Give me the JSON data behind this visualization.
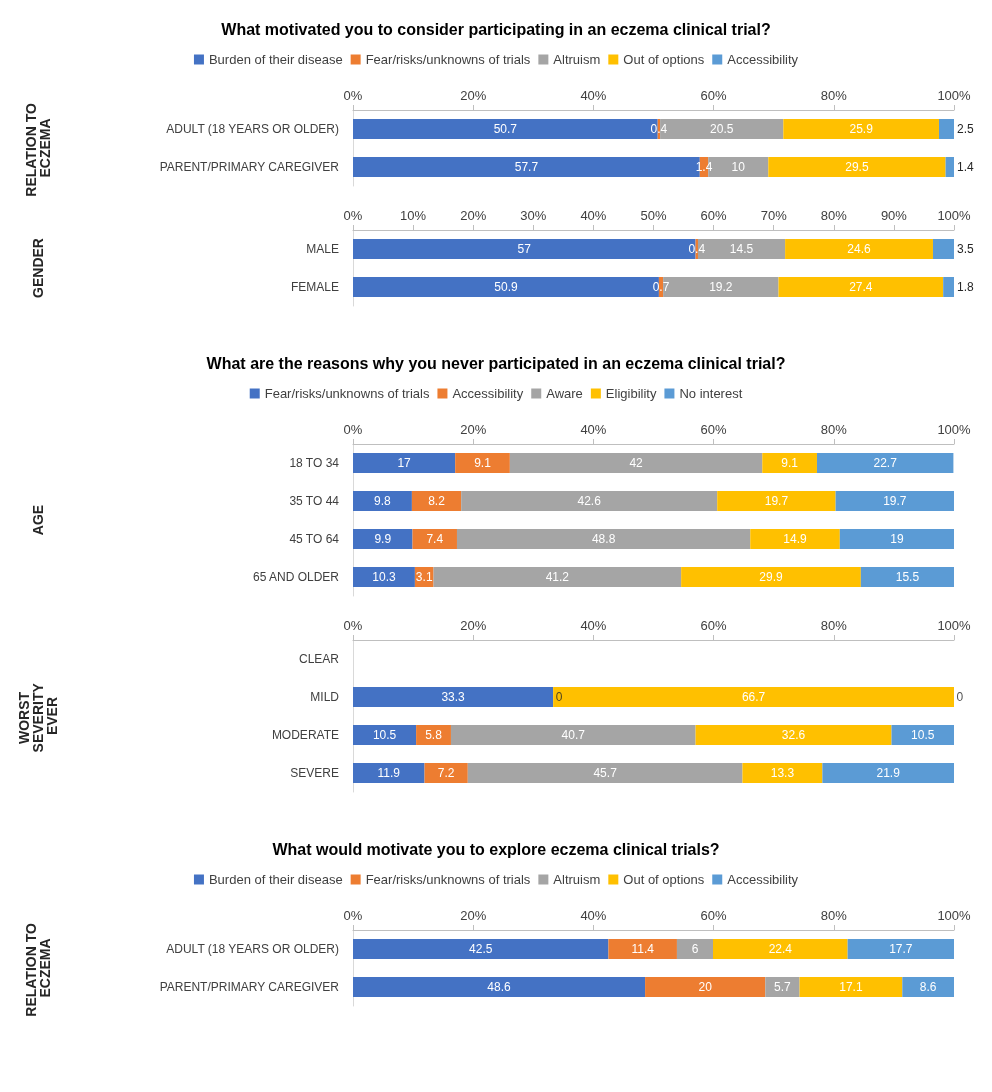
{
  "chart_data": [
    {
      "type": "bar",
      "orientation": "horizontal",
      "stacked": true,
      "data_labels": true,
      "legend": "top",
      "title": "What motivated you to consider participating in an eczema clinical trial?",
      "ylabel": "RELATION TO ECZEMA",
      "categories": [
        "ADULT (18 YEARS OR OLDER)",
        "PARENT/PRIMARY CAREGIVER"
      ],
      "xlim": [
        0,
        100
      ],
      "xticks": [
        {
          "value": 0,
          "label": "0%"
        },
        {
          "value": 20,
          "label": "20%"
        },
        {
          "value": 40,
          "label": "40%"
        },
        {
          "value": 60,
          "label": "60%"
        },
        {
          "value": 80,
          "label": "80%"
        },
        {
          "value": 100,
          "label": "100%"
        }
      ],
      "series": [
        {
          "name": "Burden of their disease",
          "color": "#4472c4",
          "values": [
            50.7,
            57.7
          ]
        },
        {
          "name": "Fear/risks/unknowns of trials",
          "color": "#ed7d31",
          "values": [
            0.4,
            1.4
          ]
        },
        {
          "name": "Altruism",
          "color": "#a5a5a5",
          "values": [
            20.5,
            10
          ]
        },
        {
          "name": "Out of options",
          "color": "#ffc000",
          "values": [
            25.9,
            29.5
          ]
        },
        {
          "name": "Accessibility",
          "color": "#5b9bd5",
          "values": [
            2.5,
            1.4
          ]
        }
      ]
    },
    {
      "type": "bar",
      "orientation": "horizontal",
      "stacked": true,
      "data_labels": true,
      "ylabel": "GENDER",
      "categories": [
        "MALE",
        "FEMALE"
      ],
      "xlim": [
        0,
        100
      ],
      "xticks": [
        {
          "value": 0,
          "label": "0%"
        },
        {
          "value": 10,
          "label": "10%"
        },
        {
          "value": 20,
          "label": "20%"
        },
        {
          "value": 30,
          "label": "30%"
        },
        {
          "value": 40,
          "label": "40%"
        },
        {
          "value": 50,
          "label": "50%"
        },
        {
          "value": 60,
          "label": "60%"
        },
        {
          "value": 70,
          "label": "70%"
        },
        {
          "value": 80,
          "label": "80%"
        },
        {
          "value": 90,
          "label": "90%"
        },
        {
          "value": 100,
          "label": "100%"
        }
      ],
      "series": [
        {
          "color": "#4472c4",
          "values": [
            57,
            50.9
          ]
        },
        {
          "color": "#ed7d31",
          "values": [
            0.4,
            0.7
          ]
        },
        {
          "color": "#a5a5a5",
          "values": [
            14.5,
            19.2
          ]
        },
        {
          "color": "#ffc000",
          "values": [
            24.6,
            27.4
          ]
        },
        {
          "color": "#5b9bd5",
          "values": [
            3.5,
            1.8
          ]
        }
      ]
    },
    {
      "type": "bar",
      "orientation": "horizontal",
      "stacked": true,
      "data_labels": true,
      "legend": "top",
      "title": "What are the reasons why you never participated in an eczema clinical trial?",
      "ylabel": "AGE",
      "categories": [
        "18 TO 34",
        "35 TO 44",
        "45 TO 64",
        "65 AND OLDER"
      ],
      "xlim": [
        0,
        100
      ],
      "xticks": [
        {
          "value": 0,
          "label": "0%"
        },
        {
          "value": 20,
          "label": "20%"
        },
        {
          "value": 40,
          "label": "40%"
        },
        {
          "value": 60,
          "label": "60%"
        },
        {
          "value": 80,
          "label": "80%"
        },
        {
          "value": 100,
          "label": "100%"
        }
      ],
      "series": [
        {
          "name": "Fear/risks/unknowns of trials",
          "color": "#4472c4",
          "values": [
            17,
            9.8,
            9.9,
            10.3
          ]
        },
        {
          "name": "Accessibility",
          "color": "#ed7d31",
          "values": [
            9.1,
            8.2,
            7.4,
            3.1
          ]
        },
        {
          "name": "Aware",
          "color": "#a5a5a5",
          "values": [
            42,
            42.6,
            48.8,
            41.2
          ]
        },
        {
          "name": "Eligibility",
          "color": "#ffc000",
          "values": [
            9.1,
            19.7,
            14.9,
            29.9
          ]
        },
        {
          "name": "No interest",
          "color": "#5b9bd5",
          "values": [
            22.7,
            19.7,
            19,
            15.5
          ]
        }
      ]
    },
    {
      "type": "bar",
      "orientation": "horizontal",
      "stacked": true,
      "data_labels": true,
      "ylabel": "WORST SEVERITY EVER",
      "annotations": [
        {
          "text": "0",
          "x": 33.3,
          "y": "MILD"
        },
        {
          "text": "0",
          "x": 100,
          "y": "MILD"
        }
      ],
      "categories": [
        "CLEAR",
        "MILD",
        "MODERATE",
        "SEVERE"
      ],
      "xlim": [
        0,
        100
      ],
      "xticks": [
        {
          "value": 0,
          "label": "0%"
        },
        {
          "value": 20,
          "label": "20%"
        },
        {
          "value": 40,
          "label": "40%"
        },
        {
          "value": 60,
          "label": "60%"
        },
        {
          "value": 80,
          "label": "80%"
        },
        {
          "value": 100,
          "label": "100%"
        }
      ],
      "series": [
        {
          "color": "#4472c4",
          "values": [
            null,
            33.3,
            10.5,
            11.9
          ]
        },
        {
          "color": "#ed7d31",
          "values": [
            null,
            null,
            5.8,
            7.2
          ]
        },
        {
          "color": "#a5a5a5",
          "values": [
            null,
            null,
            40.7,
            45.7
          ]
        },
        {
          "color": "#ffc000",
          "values": [
            null,
            66.7,
            32.6,
            13.3
          ]
        },
        {
          "color": "#5b9bd5",
          "values": [
            null,
            null,
            10.5,
            21.9
          ]
        }
      ]
    },
    {
      "type": "bar",
      "orientation": "horizontal",
      "stacked": true,
      "data_labels": true,
      "legend": "top",
      "title": "What would motivate you to explore eczema clinical trials?",
      "ylabel": "RELATION TO ECZEMA",
      "categories": [
        "ADULT (18 YEARS OR OLDER)",
        "PARENT/PRIMARY CAREGIVER"
      ],
      "xlim": [
        0,
        100
      ],
      "xticks": [
        {
          "value": 0,
          "label": "0%"
        },
        {
          "value": 20,
          "label": "20%"
        },
        {
          "value": 40,
          "label": "40%"
        },
        {
          "value": 60,
          "label": "60%"
        },
        {
          "value": 80,
          "label": "80%"
        },
        {
          "value": 100,
          "label": "100%"
        }
      ],
      "series": [
        {
          "name": "Burden of their disease",
          "color": "#4472c4",
          "values": [
            42.5,
            48.6
          ]
        },
        {
          "name": "Fear/risks/unknowns of trials",
          "color": "#ed7d31",
          "values": [
            11.4,
            20
          ]
        },
        {
          "name": "Altruism",
          "color": "#a5a5a5",
          "values": [
            6,
            5.7
          ]
        },
        {
          "name": "Out of options",
          "color": "#ffc000",
          "values": [
            22.4,
            17.1
          ]
        },
        {
          "name": "Accessibility",
          "color": "#5b9bd5",
          "values": [
            17.7,
            8.6
          ]
        }
      ]
    }
  ]
}
